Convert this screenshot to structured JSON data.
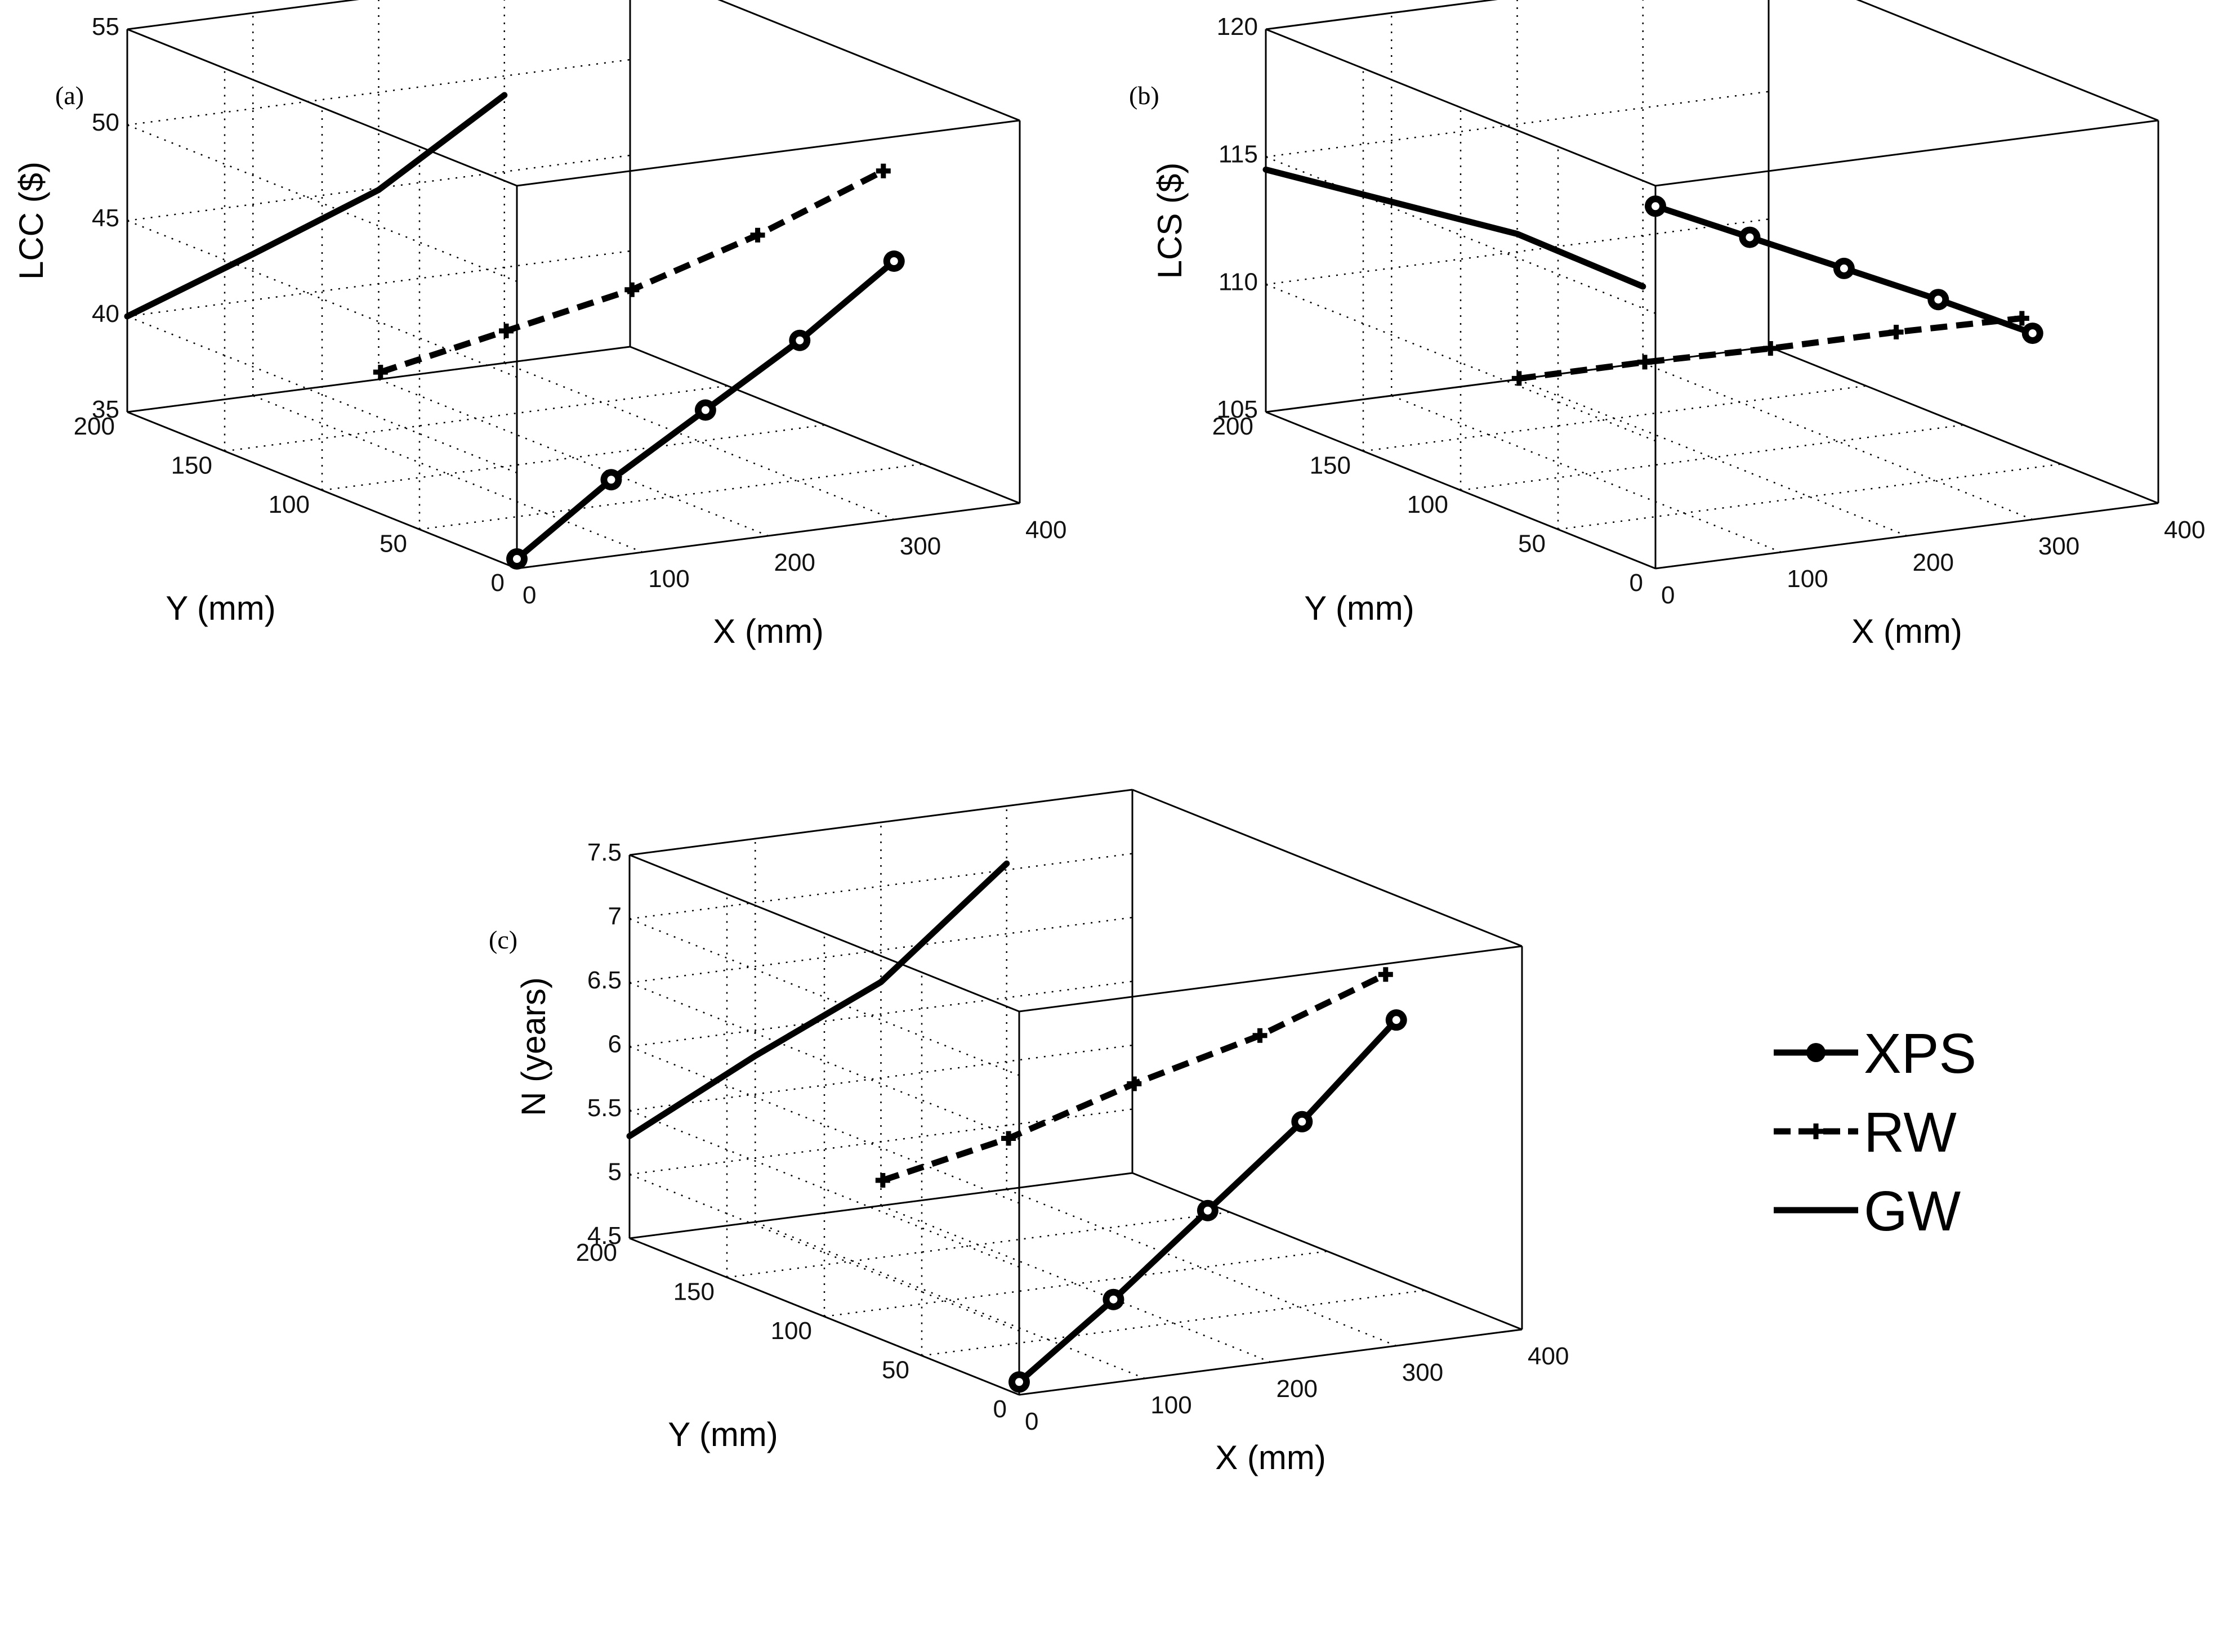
{
  "legend": {
    "items": [
      {
        "name": "XPS",
        "style": "solid-marker"
      },
      {
        "name": "RW",
        "style": "dashed-plus"
      },
      {
        "name": "GW",
        "style": "solid"
      }
    ]
  },
  "chart_data": [
    {
      "type": "line",
      "panel_label": "(a)",
      "title": "",
      "xlabel": "X (mm)",
      "ylabel": "Y (mm)",
      "zlabel": "LCC ($)",
      "xlim": [
        0,
        400
      ],
      "ylim": [
        0,
        200
      ],
      "zlim": [
        35,
        55
      ],
      "xticks": [
        0,
        100,
        200,
        300,
        400
      ],
      "yticks": [
        0,
        50,
        100,
        150,
        200
      ],
      "zticks": [
        35,
        40,
        45,
        50,
        55
      ],
      "series": [
        {
          "name": "XPS",
          "x": [
            0,
            75,
            150,
            225,
            300
          ],
          "y": [
            0,
            0,
            0,
            0,
            0
          ],
          "z": [
            35.5,
            39.0,
            42.0,
            45.0,
            48.5
          ]
        },
        {
          "name": "RW",
          "x": [
            0,
            100,
            200,
            300,
            400
          ],
          "y": [
            70,
            70,
            70,
            70,
            70
          ],
          "z": [
            42.4,
            43.7,
            45.0,
            47.0,
            49.5
          ]
        },
        {
          "name": "GW",
          "x": [
            0,
            100,
            200,
            300
          ],
          "y": [
            200,
            200,
            200,
            200
          ],
          "z": [
            40.0,
            42.4,
            44.9,
            49.0
          ]
        }
      ]
    },
    {
      "type": "line",
      "panel_label": "(b)",
      "title": "",
      "xlabel": "X (mm)",
      "ylabel": "Y (mm)",
      "zlabel": "LCS ($)",
      "xlim": [
        0,
        400
      ],
      "ylim": [
        0,
        200
      ],
      "zlim": [
        105,
        120
      ],
      "xticks": [
        0,
        100,
        200,
        300,
        400
      ],
      "yticks": [
        0,
        50,
        100,
        150,
        200
      ],
      "zticks": [
        105,
        110,
        115,
        120
      ],
      "series": [
        {
          "name": "XPS",
          "x": [
            0,
            75,
            150,
            225,
            300
          ],
          "y": [
            0,
            0,
            0,
            0,
            0
          ],
          "z": [
            119.2,
            117.5,
            115.8,
            114.1,
            112.3
          ]
        },
        {
          "name": "RW",
          "x": [
            0,
            100,
            200,
            300,
            400
          ],
          "y": [
            70,
            70,
            70,
            70,
            70
          ],
          "z": [
            110.3,
            110.3,
            110.2,
            110.2,
            110.1
          ]
        },
        {
          "name": "GW",
          "x": [
            0,
            100,
            200,
            300
          ],
          "y": [
            200,
            200,
            200,
            200
          ],
          "z": [
            114.5,
            112.6,
            110.7,
            108.0
          ]
        }
      ]
    },
    {
      "type": "line",
      "panel_label": "(c)",
      "title": "",
      "xlabel": "X (mm)",
      "ylabel": "Y (mm)",
      "zlabel": "N (years)",
      "xlim": [
        0,
        400
      ],
      "ylim": [
        0,
        200
      ],
      "zlim": [
        4.5,
        7.5
      ],
      "xticks": [
        0,
        100,
        200,
        300,
        400
      ],
      "yticks": [
        0,
        50,
        100,
        150,
        200
      ],
      "zticks": [
        4.5,
        5,
        5.5,
        6,
        6.5,
        7,
        7.5
      ],
      "series": [
        {
          "name": "XPS",
          "x": [
            0,
            75,
            150,
            225,
            300
          ],
          "y": [
            0,
            0,
            0,
            0,
            0
          ],
          "z": [
            4.6,
            5.15,
            5.75,
            6.35,
            7.05
          ]
        },
        {
          "name": "RW",
          "x": [
            0,
            100,
            200,
            300,
            400
          ],
          "y": [
            70,
            70,
            70,
            70,
            70
          ],
          "z": [
            5.75,
            5.95,
            6.25,
            6.5,
            6.85
          ]
        },
        {
          "name": "GW",
          "x": [
            0,
            100,
            200,
            300
          ],
          "y": [
            200,
            200,
            200,
            200
          ],
          "z": [
            5.3,
            5.8,
            6.25,
            7.05
          ]
        }
      ]
    }
  ]
}
